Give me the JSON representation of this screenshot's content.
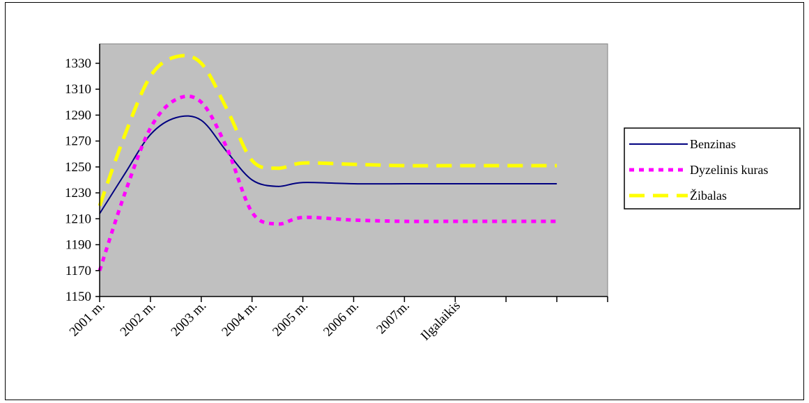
{
  "chart_data": {
    "type": "line",
    "categories": [
      "2001 m.",
      "2002 m.",
      "2003 m.",
      "2004 m.",
      "2005 m.",
      "2006 m.",
      "2007m.",
      "Ilgalaikis",
      "",
      ""
    ],
    "ylim": [
      1150,
      1340
    ],
    "yticks": [
      1150,
      1170,
      1190,
      1210,
      1230,
      1250,
      1270,
      1290,
      1310,
      1330
    ],
    "grid": false,
    "plot_background": "#c0c0c0",
    "legend_position": "right",
    "series": [
      {
        "name": "Benzinas",
        "color": "#000080",
        "style": "solid",
        "x": [
          0,
          0.5,
          1,
          1.5,
          2,
          2.5,
          3,
          3.5,
          4,
          5,
          6,
          7,
          8,
          9
        ],
        "values": [
          1214,
          1245,
          1275,
          1288,
          1286,
          1262,
          1240,
          1235,
          1238,
          1237,
          1237,
          1237,
          1237,
          1237
        ]
      },
      {
        "name": "Dyzelinis kuras",
        "color": "#ff00ff",
        "style": "dotted",
        "x": [
          0,
          0.5,
          1,
          1.5,
          2,
          2.5,
          3,
          3.5,
          4,
          5,
          6,
          7,
          8,
          9
        ],
        "values": [
          1170,
          1230,
          1280,
          1302,
          1300,
          1265,
          1215,
          1206,
          1211,
          1209,
          1208,
          1208,
          1208,
          1208
        ]
      },
      {
        "name": "Žibalas",
        "color": "#ffff00",
        "style": "dashed",
        "x": [
          0,
          0.5,
          1,
          1.5,
          2,
          2.5,
          3,
          3.5,
          4,
          5,
          6,
          7,
          8,
          9
        ],
        "values": [
          1220,
          1275,
          1320,
          1335,
          1330,
          1295,
          1255,
          1249,
          1253,
          1252,
          1251,
          1251,
          1251,
          1251
        ]
      }
    ]
  }
}
